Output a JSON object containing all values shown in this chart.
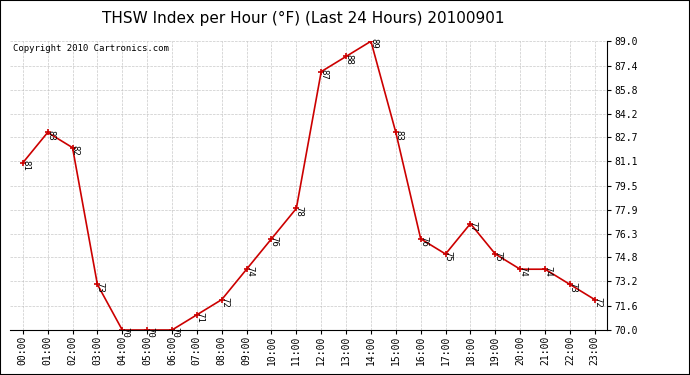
{
  "title": "THSW Index per Hour (°F) (Last 24 Hours) 20100901",
  "copyright": "Copyright 2010 Cartronics.com",
  "hours": [
    "00:00",
    "01:00",
    "02:00",
    "03:00",
    "04:00",
    "05:00",
    "06:00",
    "07:00",
    "08:00",
    "09:00",
    "10:00",
    "11:00",
    "12:00",
    "13:00",
    "14:00",
    "15:00",
    "16:00",
    "17:00",
    "18:00",
    "19:00",
    "20:00",
    "21:00",
    "22:00",
    "23:00"
  ],
  "values": [
    81,
    83,
    82,
    73,
    70,
    70,
    70,
    71,
    72,
    74,
    76,
    78,
    87,
    88,
    89,
    83,
    76,
    75,
    77,
    75,
    74,
    74,
    73,
    72
  ],
  "ylim_min": 70.0,
  "ylim_max": 89.0,
  "yticks": [
    70.0,
    71.6,
    73.2,
    74.8,
    76.3,
    77.9,
    79.5,
    81.1,
    82.7,
    84.2,
    85.8,
    87.4,
    89.0
  ],
  "ytick_labels": [
    "70.0",
    "71.6",
    "73.2",
    "74.8",
    "76.3",
    "77.9",
    "79.5",
    "81.1",
    "82.7",
    "84.2",
    "85.8",
    "87.4",
    "89.0"
  ],
  "line_color": "#cc0000",
  "marker_color": "#cc0000",
  "bg_color": "#ffffff",
  "plot_bg_color": "#ffffff",
  "grid_color": "#bbbbbb",
  "title_fontsize": 11,
  "copyright_fontsize": 6.5,
  "label_fontsize": 6.5,
  "tick_fontsize": 7
}
